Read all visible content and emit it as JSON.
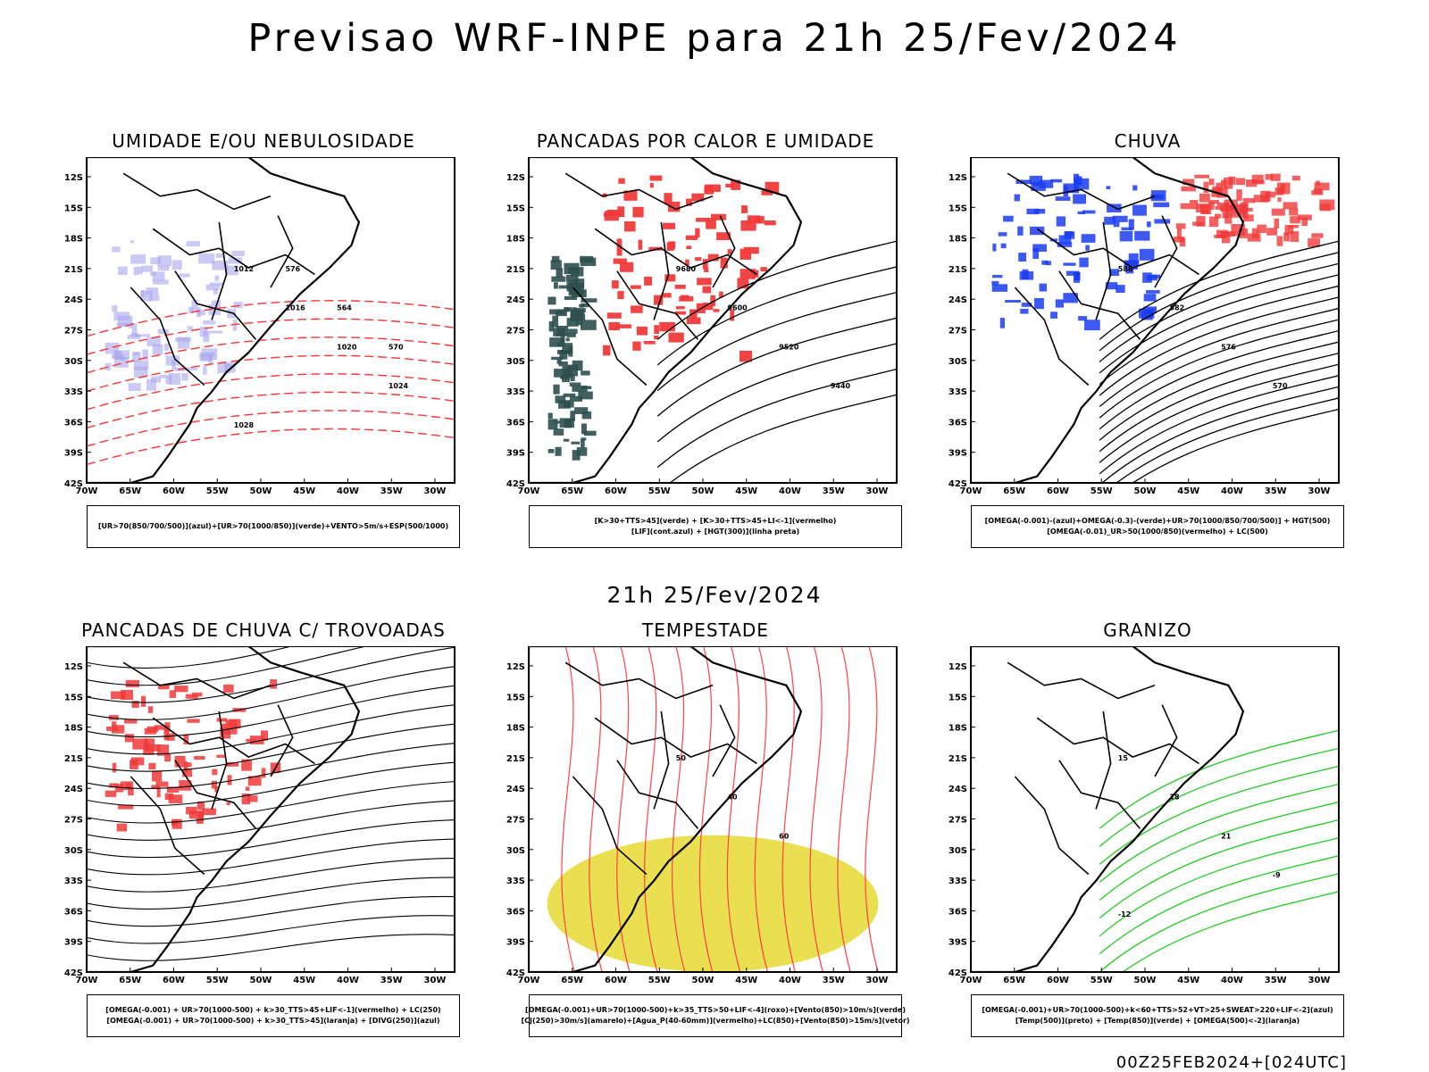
{
  "header": {
    "title": "Previsao WRF-INPE  para 21h 25/Fev/2024",
    "mid_date": "21h 25/Fev/2024",
    "run_code": "00Z25FEB2024+[024UTC]"
  },
  "axes": {
    "lat_labels": [
      "12S",
      "15S",
      "18S",
      "21S",
      "24S",
      "27S",
      "30S",
      "33S",
      "36S",
      "39S",
      "42S"
    ],
    "lon_labels": [
      "70W",
      "65W",
      "60W",
      "55W",
      "50W",
      "45W",
      "40W",
      "35W",
      "30W"
    ]
  },
  "panels": [
    {
      "id": "umidade",
      "title": "UMIDADE E/OU NEBULOSIDADE",
      "legend": [
        "[UR>70(850/700/500)](azul)+[UR>70(1000/850)](verde)+VENTO>5m/s+ESP(500/1000)"
      ],
      "colors": {
        "primary": "#a9a6ee",
        "secondary": "#2bd12b",
        "lines": "#ff3333"
      },
      "contour_labels": [
        "1012",
        "1016",
        "1020",
        "1024",
        "1028",
        "576",
        "564",
        "570"
      ]
    },
    {
      "id": "pancadas-calor",
      "title": "PANCADAS POR CALOR E UMIDADE",
      "legend": [
        "[K>30+TTS>45](verde) + [K>30+TTS>45+LI<-1](vermelho)",
        "[LIF](cont.azul) + [HGT(300)](linha preta)"
      ],
      "colors": {
        "primary": "#f03a3a",
        "secondary": "#2f4f4f",
        "lines": "#2244ff"
      },
      "contour_labels": [
        "9680",
        "9600",
        "9520",
        "9440"
      ]
    },
    {
      "id": "chuva",
      "title": "CHUVA",
      "legend": [
        "[OMEGA(-0.001)-(azul)+OMEGA(-0.3)-(verde)+UR>70(1000/850/700/500)] + HGT(500)",
        "[OMEGA(-0.01)_UR>50(1000/850)(vermelho) + LC(500)"
      ],
      "colors": {
        "primary": "#1a3cf0",
        "secondary": "#f03a3a",
        "lines": "#000000"
      },
      "contour_labels": [
        "588",
        "582",
        "576",
        "570"
      ]
    },
    {
      "id": "pancadas-trovoadas",
      "title": "PANCADAS DE CHUVA C/ TROVOADAS",
      "legend": [
        "[OMEGA(-0.001) + UR>70(1000-500) + k>30_TTS>45+LIF<-1](vermelho) + LC(250)",
        "[OMEGA(-0.001) + UR>70(1000-500) + k>30_TTS>45](laranja) + [DIVG(250)](azul)"
      ],
      "colors": {
        "primary": "#f03a3a",
        "secondary": "#2a52e8",
        "lines": "#e8901a"
      },
      "contour_labels": []
    },
    {
      "id": "tempestade",
      "title": "TEMPESTADE",
      "legend": [
        "[OMEGA(-0.001)+UR>70(1000-500)+k>35_TTS>50+LIF<-4](roxo)+[Vento(850)>10m/s](verde)",
        "[CJ(250)>30m/s](amarelo)+[Agua_P(40-60mm)](vermelho)+LC(850)+[Vento(850)>15m/s](vetor)"
      ],
      "colors": {
        "primary": "#e6d832",
        "secondary": "#ff4444",
        "lines": "#22aa22"
      },
      "contour_labels": [
        "50",
        "40",
        "60"
      ]
    },
    {
      "id": "granizo",
      "title": "GRANIZO",
      "legend": [
        "[OMEGA(-0.001)+UR>70(1000-500)+k<60+TTS>52+VT>25+SWEAT>220+LIF<-2](azul)",
        "[Temp(500)](preto) + [Temp(850)](verde) + [OMEGA(500)<-2](laranja)"
      ],
      "colors": {
        "primary": "#22cc22",
        "secondary": "#e8901a",
        "lines": "#000000"
      },
      "contour_labels": [
        "15",
        "18",
        "21",
        "-9",
        "-12"
      ]
    }
  ]
}
